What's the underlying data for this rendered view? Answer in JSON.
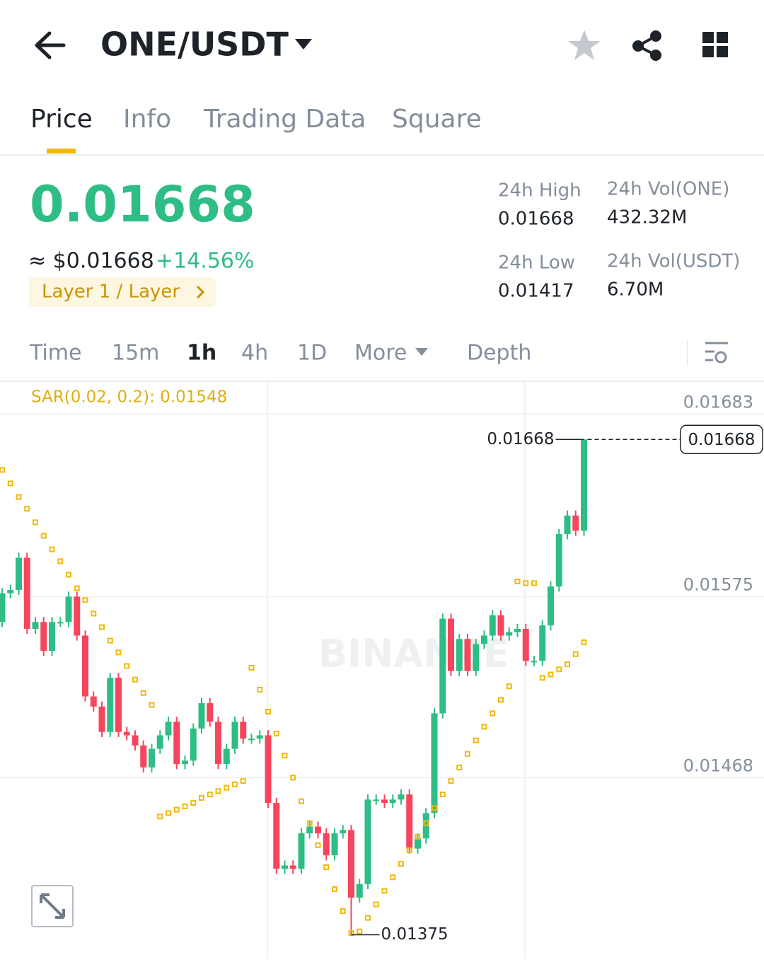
{
  "header": {
    "pair": "ONE/USDT"
  },
  "tabs": [
    "Price",
    "Info",
    "Trading Data",
    "Square"
  ],
  "ticker": {
    "price": "0.01668",
    "usd_price": "≈ $0.01668",
    "change": "+14.56%",
    "tag": "Layer 1 / Layer"
  },
  "stats": [
    {
      "label": "24h High",
      "value": "0.01668"
    },
    {
      "label": "24h Vol(ONE)",
      "value": "432.32M"
    },
    {
      "label": "24h Low",
      "value": "0.01417"
    },
    {
      "label": "24h Vol(USDT)",
      "value": "6.70M"
    }
  ],
  "intervals": [
    "Time",
    "15m",
    "1h",
    "4h",
    "1D",
    "More",
    "Depth"
  ],
  "chart_data": {
    "type": "candlestick",
    "indicator_label": "SAR(0.02, 0.2): 0.01548",
    "watermark": "BINANCE",
    "max_label": "0.01668",
    "min_label": "0.01375",
    "last_price_label": "0.01668",
    "up_color": "#2ebd85",
    "down_color": "#f6465d",
    "sar_color": "#f0b90b",
    "ylim": [
      0.01361,
      0.01702
    ],
    "yticks": [
      0.01683,
      0.01575,
      0.01468
    ],
    "grid": true,
    "open": [
      0.0156,
      0.01577,
      0.01579,
      0.01598,
      0.01556,
      0.0156,
      0.01543,
      0.0156,
      0.0156,
      0.01575,
      0.01552,
      0.01516,
      0.0151,
      0.01495,
      0.01527,
      0.01495,
      0.01493,
      0.01487,
      0.01474,
      0.01485,
      0.01493,
      0.01501,
      0.01476,
      0.01478,
      0.01497,
      0.01512,
      0.01501,
      0.01476,
      0.01485,
      0.01501,
      0.01491,
      0.01491,
      0.01493,
      0.01453,
      0.01414,
      0.01416,
      0.01414,
      0.01435,
      0.01439,
      0.01435,
      0.01422,
      0.01435,
      0.01437,
      0.01397,
      0.01405,
      0.01455,
      0.01455,
      0.01453,
      0.01455,
      0.01458,
      0.01426,
      0.01432,
      0.01447,
      0.01506,
      0.01562,
      0.01531,
      0.0155,
      0.01531,
      0.01547,
      0.01552,
      0.01564,
      0.01552,
      0.01554,
      0.01556,
      0.01537,
      0.01537,
      0.01558,
      0.01581,
      0.01612,
      0.01623,
      0.01614
    ],
    "high": [
      0.0158,
      0.01582,
      0.01601,
      0.01601,
      0.01563,
      0.01563,
      0.01563,
      0.01563,
      0.01578,
      0.01578,
      0.01555,
      0.01519,
      0.01513,
      0.0153,
      0.0153,
      0.01498,
      0.01496,
      0.0149,
      0.01488,
      0.01496,
      0.01504,
      0.01504,
      0.01481,
      0.015,
      0.01515,
      0.01515,
      0.01504,
      0.01488,
      0.01504,
      0.01504,
      0.01494,
      0.01496,
      0.01496,
      0.01456,
      0.01419,
      0.01419,
      0.01438,
      0.01442,
      0.01442,
      0.01438,
      0.01438,
      0.0144,
      0.0144,
      0.01408,
      0.01458,
      0.01458,
      0.01458,
      0.01458,
      0.01461,
      0.01461,
      0.01435,
      0.0145,
      0.01509,
      0.01565,
      0.01565,
      0.01553,
      0.01553,
      0.0155,
      0.01555,
      0.01567,
      0.01567,
      0.01557,
      0.01559,
      0.01559,
      0.0154,
      0.01561,
      0.01584,
      0.01615,
      0.01626,
      0.01626,
      0.01668
    ],
    "low": [
      0.01557,
      0.01574,
      0.01576,
      0.01553,
      0.01553,
      0.0154,
      0.0154,
      0.01557,
      0.01557,
      0.01549,
      0.01513,
      0.01507,
      0.01492,
      0.01492,
      0.01492,
      0.0149,
      0.01484,
      0.01471,
      0.01471,
      0.01482,
      0.0149,
      0.01473,
      0.01473,
      0.01475,
      0.01494,
      0.01498,
      0.01473,
      0.01473,
      0.01482,
      0.01488,
      0.01488,
      0.01488,
      0.0145,
      0.01411,
      0.01411,
      0.01411,
      0.01411,
      0.01432,
      0.01432,
      0.01419,
      0.01419,
      0.01432,
      0.01375,
      0.01394,
      0.01402,
      0.01452,
      0.0145,
      0.0145,
      0.01452,
      0.01423,
      0.01423,
      0.01429,
      0.01444,
      0.01503,
      0.01528,
      0.01528,
      0.01528,
      0.01528,
      0.01544,
      0.01549,
      0.01549,
      0.01549,
      0.01551,
      0.01534,
      0.01534,
      0.01534,
      0.01555,
      0.01578,
      0.01609,
      0.01611,
      0.01611
    ],
    "close": [
      0.01577,
      0.01579,
      0.01598,
      0.01556,
      0.0156,
      0.01543,
      0.0156,
      0.0156,
      0.01575,
      0.01552,
      0.01516,
      0.0151,
      0.01495,
      0.01527,
      0.01495,
      0.01493,
      0.01487,
      0.01474,
      0.01485,
      0.01493,
      0.01501,
      0.01476,
      0.01478,
      0.01497,
      0.01512,
      0.01501,
      0.01476,
      0.01485,
      0.01501,
      0.01491,
      0.01491,
      0.01493,
      0.01453,
      0.01414,
      0.01416,
      0.01414,
      0.01435,
      0.01439,
      0.01435,
      0.01422,
      0.01435,
      0.01437,
      0.01397,
      0.01405,
      0.01455,
      0.01455,
      0.01453,
      0.01455,
      0.01458,
      0.01426,
      0.01432,
      0.01447,
      0.01506,
      0.01562,
      0.01531,
      0.0155,
      0.01531,
      0.01547,
      0.01552,
      0.01564,
      0.01552,
      0.01554,
      0.01556,
      0.01537,
      0.01537,
      0.01558,
      0.01581,
      0.01612,
      0.01623,
      0.01614,
      0.01668
    ],
    "sar": [
      0.0165,
      0.01642,
      0.01634,
      0.01627,
      0.01619,
      0.01611,
      0.01603,
      0.01596,
      0.01588,
      0.0158,
      0.01573,
      0.01565,
      0.01557,
      0.01549,
      0.01542,
      0.01534,
      0.01526,
      0.01518,
      0.01511,
      0.01445,
      0.01447,
      0.01449,
      0.01451,
      0.01453,
      0.01456,
      0.01458,
      0.0146,
      0.01462,
      0.01464,
      0.01466,
      0.01533,
      0.0152,
      0.01507,
      0.01494,
      0.01481,
      0.01468,
      0.01454,
      0.01441,
      0.01428,
      0.01415,
      0.01402,
      0.01389,
      0.01376,
      0.01377,
      0.01385,
      0.01393,
      0.01401,
      0.01409,
      0.01417,
      0.01425,
      0.01433,
      0.01441,
      0.0145,
      0.01458,
      0.01466,
      0.01474,
      0.01482,
      0.0149,
      0.01498,
      0.01506,
      0.01514,
      0.01522,
      0.01584,
      0.01583,
      0.01583,
      0.01527,
      0.01529,
      0.01532,
      0.01535,
      0.01541,
      0.01548
    ]
  }
}
